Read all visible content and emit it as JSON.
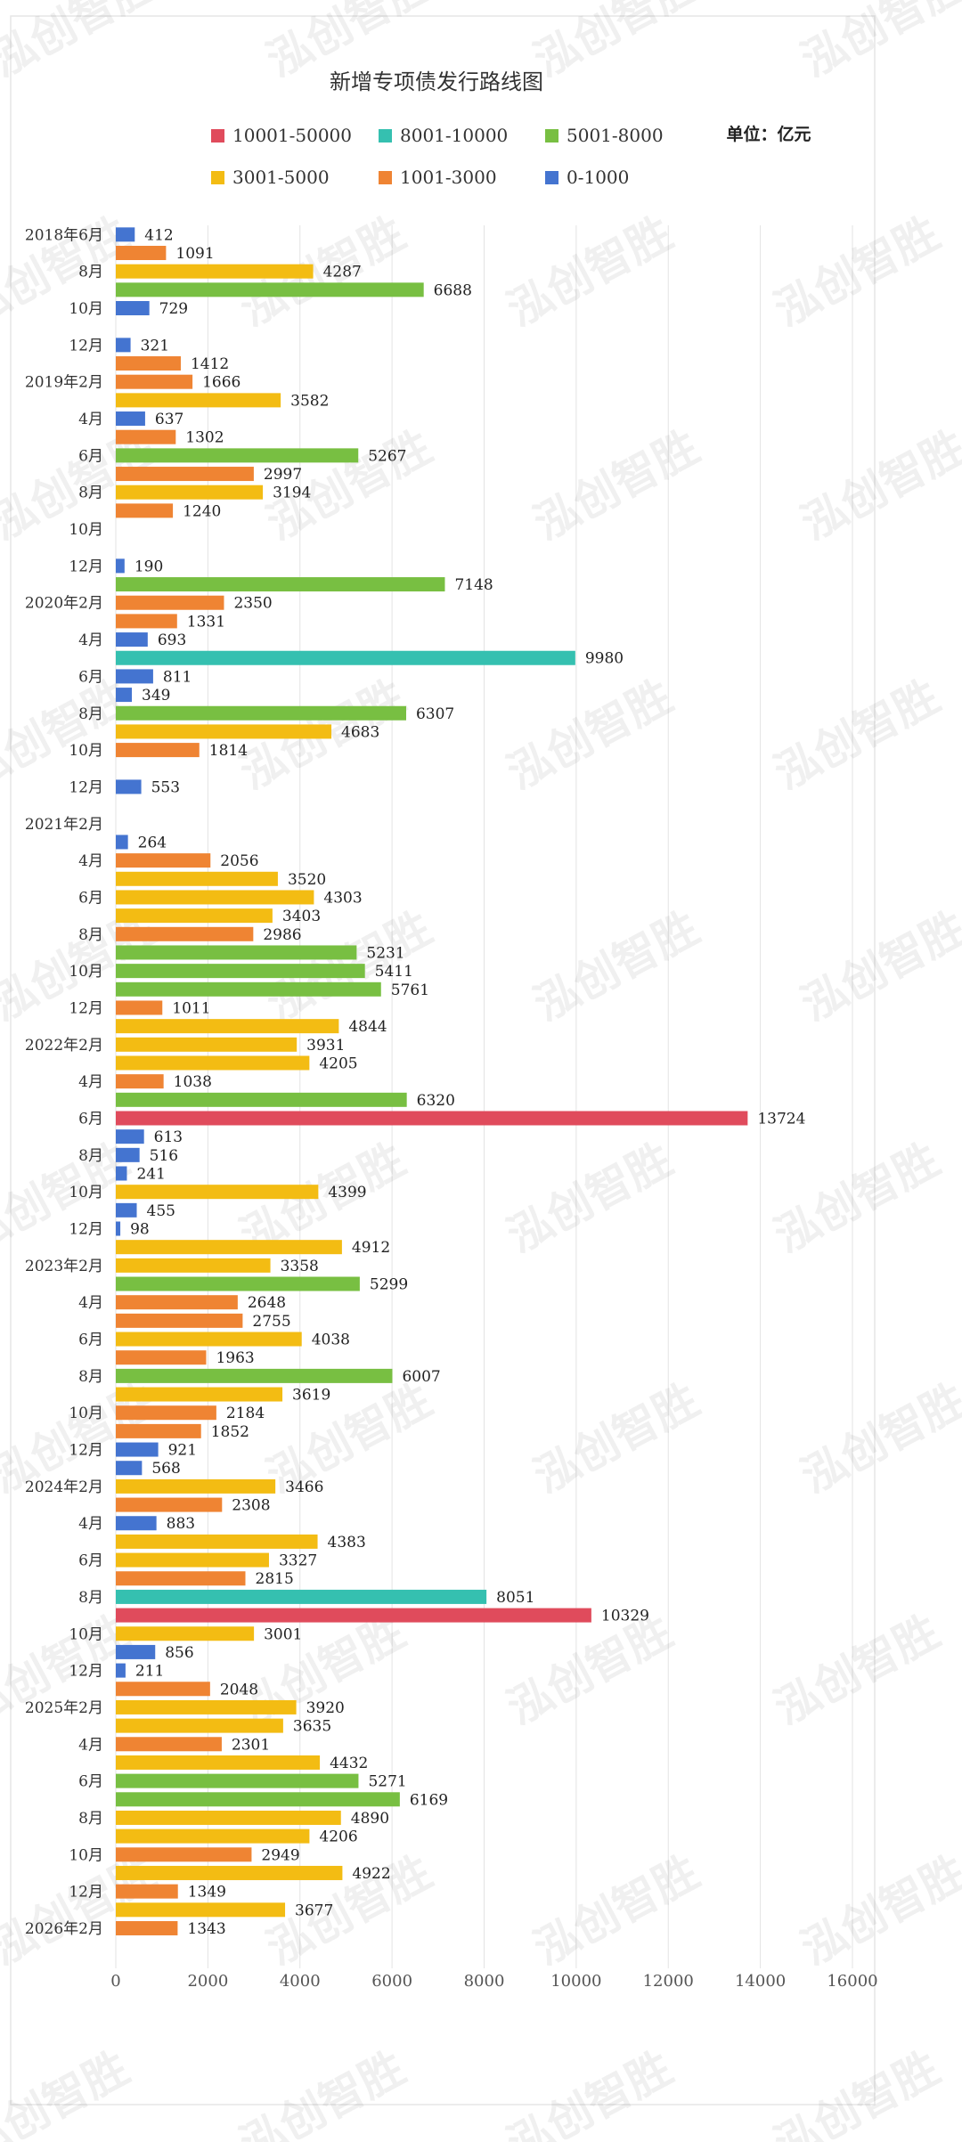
{
  "chart_data": {
    "type": "bar",
    "orientation": "horizontal",
    "title": "新增专项债发行路线图",
    "unit_label": "单位：亿元",
    "watermark": "泓创智胜",
    "xlim": [
      0,
      16000
    ],
    "xticks": [
      "0",
      "2000",
      "4000",
      "6000",
      "8000",
      "10000",
      "12000",
      "14000",
      "16000"
    ],
    "grid": true,
    "legend_position": "top",
    "legend": [
      {
        "name": "10001-50000",
        "color": "#e04b5c"
      },
      {
        "name": "8001-10000",
        "color": "#35c0b0"
      },
      {
        "name": "5001-8000",
        "color": "#78bf42"
      },
      {
        "name": "3001-5000",
        "color": "#f3bc13"
      },
      {
        "name": "1001-3000",
        "color": "#ef8433"
      },
      {
        "name": "0-1000",
        "color": "#4474d0"
      }
    ],
    "categories": [
      "2018年6月",
      "",
      "8月",
      "",
      "10月",
      "",
      "12月",
      "",
      "2019年2月",
      "",
      "4月",
      "",
      "6月",
      "",
      "8月",
      "",
      "10月",
      "",
      "12月",
      "",
      "2020年2月",
      "",
      "4月",
      "",
      "6月",
      "",
      "8月",
      "",
      "10月",
      "",
      "12月",
      "",
      "2021年2月",
      "",
      "4月",
      "",
      "6月",
      "",
      "8月",
      "",
      "10月",
      "",
      "12月",
      "",
      "2022年2月",
      "",
      "4月",
      "",
      "6月",
      "",
      "8月",
      "",
      "10月",
      "",
      "12月",
      "",
      "2023年2月",
      "",
      "4月",
      "",
      "6月",
      "",
      "8月",
      "",
      "10月",
      "",
      "12月",
      "",
      "2024年2月",
      "",
      "4月",
      "",
      "6月",
      "",
      "8月",
      "",
      "10月",
      "",
      "12月",
      "",
      "2025年2月",
      "",
      "4月",
      "",
      "6月",
      "",
      "8月",
      "",
      "10月",
      "",
      "12月",
      "",
      "2026年2月"
    ],
    "values": [
      412,
      1091,
      4287,
      6688,
      729,
      null,
      321,
      1412,
      1666,
      3582,
      637,
      1302,
      5267,
      2997,
      3194,
      1240,
      null,
      null,
      190,
      7148,
      2350,
      1331,
      693,
      9980,
      811,
      349,
      6307,
      4683,
      1814,
      null,
      553,
      null,
      null,
      264,
      2056,
      3520,
      4303,
      3403,
      2986,
      5231,
      5411,
      5761,
      1011,
      4844,
      3931,
      4205,
      1038,
      6320,
      13724,
      613,
      516,
      241,
      4399,
      455,
      98,
      4912,
      3358,
      5299,
      2648,
      2755,
      4038,
      1963,
      6007,
      3619,
      2184,
      1852,
      921,
      568,
      3466,
      2308,
      883,
      4383,
      3327,
      2815,
      8051,
      10329,
      3001,
      856,
      211,
      2048,
      3920,
      3635,
      2301,
      4432,
      5271,
      6169,
      4890,
      4206,
      2949,
      4922,
      1349,
      3677,
      1343
    ],
    "value_labels": [
      "412",
      "1091",
      "4287",
      "6688",
      "729",
      "",
      "321",
      "1412",
      "1666",
      "3582",
      "637",
      "1302",
      "5267",
      "2997",
      "3194",
      "1240",
      "",
      "",
      "190",
      "7148",
      "2350",
      "1331",
      "693",
      "9980",
      "811",
      "349",
      "6307",
      "4683",
      "1814",
      "",
      "553",
      "",
      "",
      "264",
      "2056",
      "3520",
      "4303",
      "3403",
      "2986",
      "5231",
      "5411",
      "5761",
      "1011",
      "4844",
      "3931",
      "4205",
      "1038",
      "6320",
      "13724",
      "613",
      "516",
      "241",
      "4399",
      "455",
      "98",
      "4912",
      "3358",
      "5299",
      "2648",
      "2755",
      "4038",
      "1963",
      "6007",
      "3619",
      "2184",
      "1852",
      "921",
      "568",
      "3466",
      "2308",
      "883",
      "4383",
      "3327",
      "2815",
      "8051",
      "10329",
      "3001",
      "856",
      "211",
      "2048",
      "3920",
      "3635",
      "2301",
      "4432",
      "5271",
      "6169",
      "4890",
      "4206",
      "2949",
      "4922",
      "1349",
      "3677",
      "1343"
    ]
  }
}
